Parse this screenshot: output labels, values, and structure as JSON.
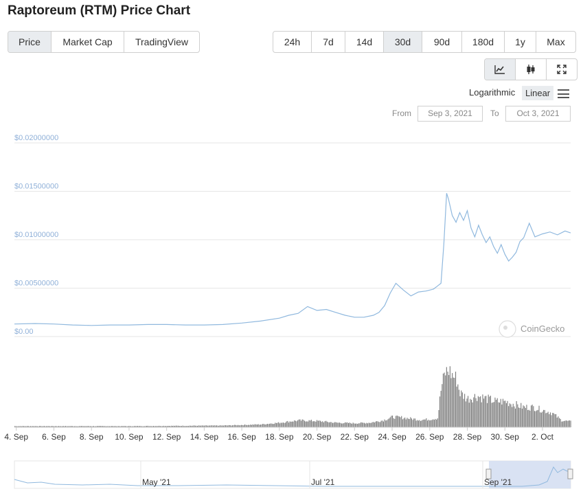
{
  "title": "Raptoreum (RTM) Price Chart",
  "view_tabs": [
    "Price",
    "Market Cap",
    "TradingView"
  ],
  "active_view": "Price",
  "range_tabs": [
    "24h",
    "7d",
    "14d",
    "30d",
    "90d",
    "180d",
    "1y",
    "Max"
  ],
  "active_range": "30d",
  "chart_types": [
    "line-chart-icon",
    "candlestick-icon",
    "expand-icon"
  ],
  "scale": {
    "log_label": "Logarithmic",
    "linear_label": "Linear",
    "active": "Linear",
    "menu_icon": "hamburger-menu-icon"
  },
  "date_range": {
    "from_label": "From",
    "from_value": "Sep 3, 2021",
    "to_label": "To",
    "to_value": "Oct 3, 2021"
  },
  "watermark": "CoinGecko",
  "colors": {
    "line": "#8fb8de",
    "volume": "#777777",
    "navigator_fill": "#d5dff2",
    "axis_text": "#8fb0d8"
  },
  "chart_data": {
    "type": "line",
    "ylabel": "",
    "ylim": [
      0,
      0.02
    ],
    "y_ticks": [
      "$0.00",
      "$0.00500000",
      "$0.01000000",
      "$0.01500000",
      "$0.02000000"
    ],
    "y_tick_values": [
      0,
      0.005,
      0.01,
      0.015,
      0.02
    ],
    "x_ticks": [
      "4. Sep",
      "6. Sep",
      "8. Sep",
      "10. Sep",
      "12. Sep",
      "14. Sep",
      "16. Sep",
      "18. Sep",
      "20. Sep",
      "22. Sep",
      "24. Sep",
      "26. Sep",
      "28. Sep",
      "30. Sep",
      "2. Oct"
    ],
    "x_tick_days": [
      4,
      6,
      8,
      10,
      12,
      14,
      16,
      18,
      20,
      22,
      24,
      26,
      28,
      30,
      32
    ],
    "x_range_days": [
      3.9,
      33.5
    ],
    "price_series": {
      "x_days": [
        3.9,
        5,
        6,
        7,
        8,
        9,
        10,
        11,
        12,
        13,
        14,
        15,
        16,
        17,
        18,
        18.5,
        19,
        19.5,
        20,
        20.5,
        21,
        21.5,
        22,
        22.5,
        23,
        23.3,
        23.6,
        23.9,
        24.2,
        24.6,
        25,
        25.4,
        25.8,
        26.2,
        26.4,
        26.6,
        26.75,
        26.9,
        27,
        27.2,
        27.4,
        27.6,
        27.8,
        28,
        28.2,
        28.4,
        28.6,
        28.8,
        29,
        29.2,
        29.4,
        29.6,
        29.8,
        30,
        30.2,
        30.4,
        30.6,
        30.8,
        31,
        31.3,
        31.6,
        32,
        32.4,
        32.8,
        33.2,
        33.5
      ],
      "values": [
        0.0013,
        0.00135,
        0.0013,
        0.0012,
        0.00115,
        0.0012,
        0.0012,
        0.00125,
        0.00125,
        0.0012,
        0.0012,
        0.00125,
        0.0014,
        0.0016,
        0.0019,
        0.0022,
        0.0024,
        0.0031,
        0.0027,
        0.0028,
        0.0025,
        0.0022,
        0.002,
        0.002,
        0.0022,
        0.0025,
        0.0032,
        0.0045,
        0.0055,
        0.0048,
        0.0042,
        0.0046,
        0.0047,
        0.0049,
        0.0052,
        0.0055,
        0.0095,
        0.0148,
        0.0142,
        0.0125,
        0.0118,
        0.0128,
        0.012,
        0.013,
        0.0112,
        0.0103,
        0.0115,
        0.0105,
        0.0097,
        0.0103,
        0.0093,
        0.0086,
        0.0095,
        0.0085,
        0.0078,
        0.0082,
        0.0087,
        0.0098,
        0.0102,
        0.0117,
        0.0103,
        0.0106,
        0.0108,
        0.0105,
        0.0109,
        0.0107
      ]
    },
    "volume_series": {
      "x_days": [
        3.9,
        10,
        15,
        17,
        18,
        19,
        20,
        21,
        22,
        22.8,
        23.5,
        24,
        24.5,
        25,
        25.5,
        26,
        26.4,
        26.6,
        26.8,
        27,
        27.2,
        27.4,
        27.6,
        28,
        28.5,
        29,
        29.5,
        30,
        30.5,
        31,
        31.5,
        32,
        32.5,
        33,
        33.5
      ],
      "values": [
        0.02,
        0.02,
        0.03,
        0.05,
        0.08,
        0.12,
        0.11,
        0.08,
        0.07,
        0.08,
        0.12,
        0.18,
        0.17,
        0.15,
        0.13,
        0.14,
        0.16,
        0.7,
        0.95,
        1.0,
        0.9,
        0.85,
        0.6,
        0.5,
        0.55,
        0.5,
        0.45,
        0.45,
        0.4,
        0.35,
        0.35,
        0.3,
        0.25,
        0.12,
        0.1
      ]
    }
  },
  "navigator": {
    "labels": [
      "May '21",
      "Jul '21",
      "Sep '21"
    ]
  }
}
